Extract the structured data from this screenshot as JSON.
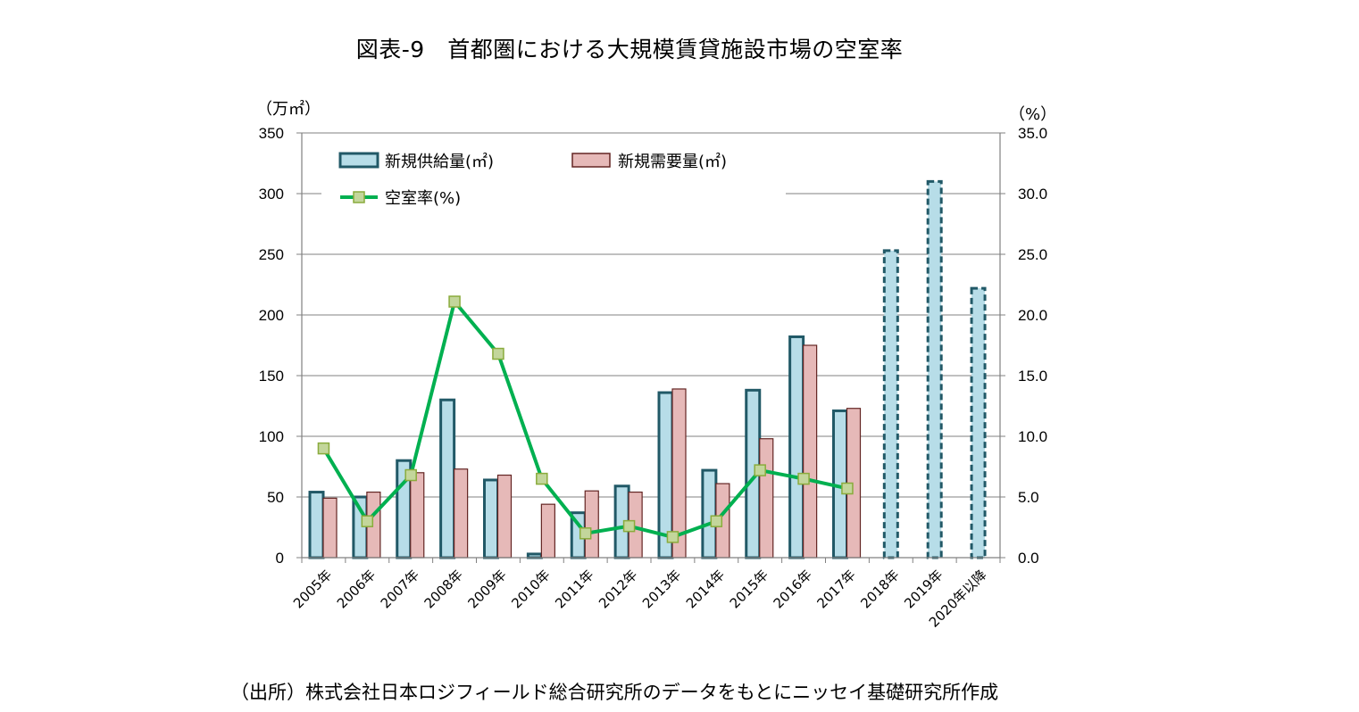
{
  "title": "図表-9　首都圏における大規模賃貸施設市場の空室率",
  "source": "（出所）株式会社日本ロジフィールド総合研究所のデータをもとにニッセイ基礎研究所作成",
  "chart_data": {
    "type": "bar",
    "categories": [
      "2005年",
      "2006年",
      "2007年",
      "2008年",
      "2009年",
      "2010年",
      "2011年",
      "2012年",
      "2013年",
      "2014年",
      "2015年",
      "2016年",
      "2017年",
      "2018年",
      "2019年",
      "2020年以降"
    ],
    "left_axis": {
      "unit": "（万㎡）",
      "ylim": [
        0,
        350
      ],
      "ticks": [
        "0",
        "50",
        "100",
        "150",
        "200",
        "250",
        "300",
        "350"
      ]
    },
    "right_axis": {
      "unit": "（%）",
      "ylim": [
        0,
        35
      ],
      "ticks": [
        "0.0",
        "5.0",
        "10.0",
        "15.0",
        "20.0",
        "25.0",
        "30.0",
        "35.0"
      ]
    },
    "series": [
      {
        "name": "新規供給量(㎡)",
        "type": "bar",
        "axis": "left",
        "color": "#b7dde8",
        "edge": "#215967",
        "values": [
          54,
          50,
          80,
          130,
          64,
          3,
          37,
          59,
          136,
          72,
          138,
          182,
          121,
          253,
          310,
          222
        ],
        "dashed_from_index": 13
      },
      {
        "name": "新規需要量(㎡)",
        "type": "bar",
        "axis": "left",
        "color": "#e6b9b8",
        "edge": "#632523",
        "values": [
          49,
          54,
          70,
          73,
          68,
          44,
          55,
          54,
          139,
          61,
          98,
          175,
          123,
          null,
          null,
          null
        ]
      },
      {
        "name": "空室率(%)",
        "type": "line",
        "axis": "right",
        "color": "#00b050",
        "marker": "#c3d69b",
        "values": [
          9.0,
          3.0,
          6.8,
          21.1,
          16.8,
          6.5,
          2.0,
          2.6,
          1.7,
          3.0,
          7.2,
          6.5,
          5.7,
          null,
          null,
          null
        ]
      }
    ],
    "grid": true,
    "legend": "top-left"
  }
}
